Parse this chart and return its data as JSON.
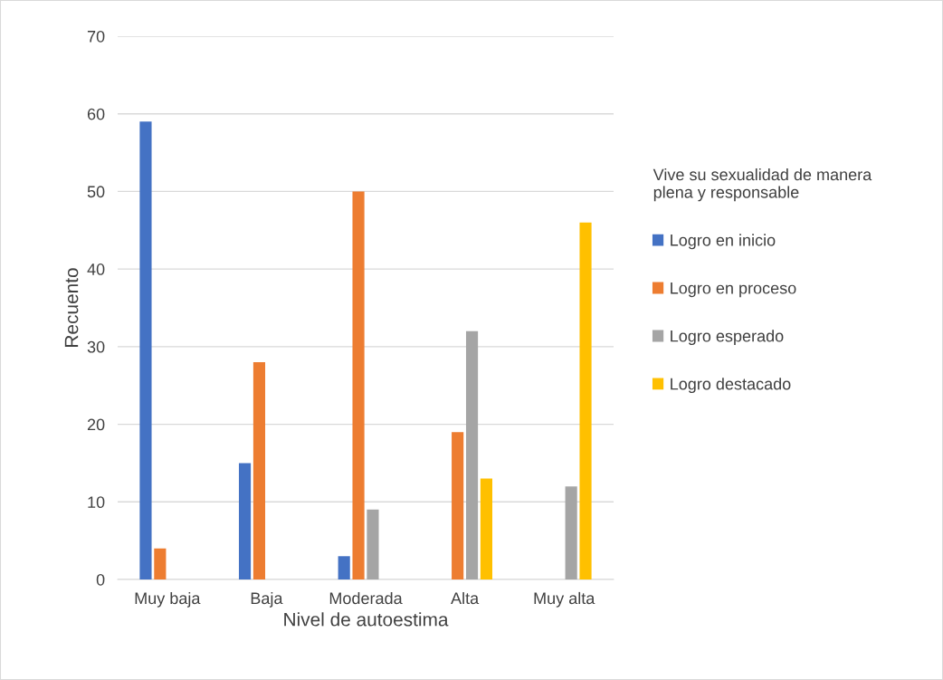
{
  "chart_data": {
    "type": "bar",
    "xlabel": "Nivel de autoestima",
    "ylabel": "Recuento",
    "legend_title": "Vive su sexualidad de manera\nplena y responsable",
    "categories": [
      "Muy baja",
      "Baja",
      "Moderada",
      "Alta",
      "Muy alta"
    ],
    "series": [
      {
        "name": "Logro en inicio",
        "color": "#4472c4",
        "values": [
          59,
          15,
          3,
          0,
          0
        ]
      },
      {
        "name": "Logro en proceso",
        "color": "#ed7d31",
        "values": [
          4,
          28,
          50,
          19,
          0
        ]
      },
      {
        "name": "Logro esperado",
        "color": "#a5a5a5",
        "values": [
          0,
          0,
          9,
          32,
          12
        ]
      },
      {
        "name": "Logro destacado",
        "color": "#ffc000",
        "values": [
          0,
          0,
          0,
          13,
          46
        ]
      }
    ],
    "ylim": [
      0,
      70
    ],
    "yticks": [
      0,
      10,
      20,
      30,
      40,
      50,
      60,
      70
    ],
    "grid": "y",
    "legend": "right"
  }
}
